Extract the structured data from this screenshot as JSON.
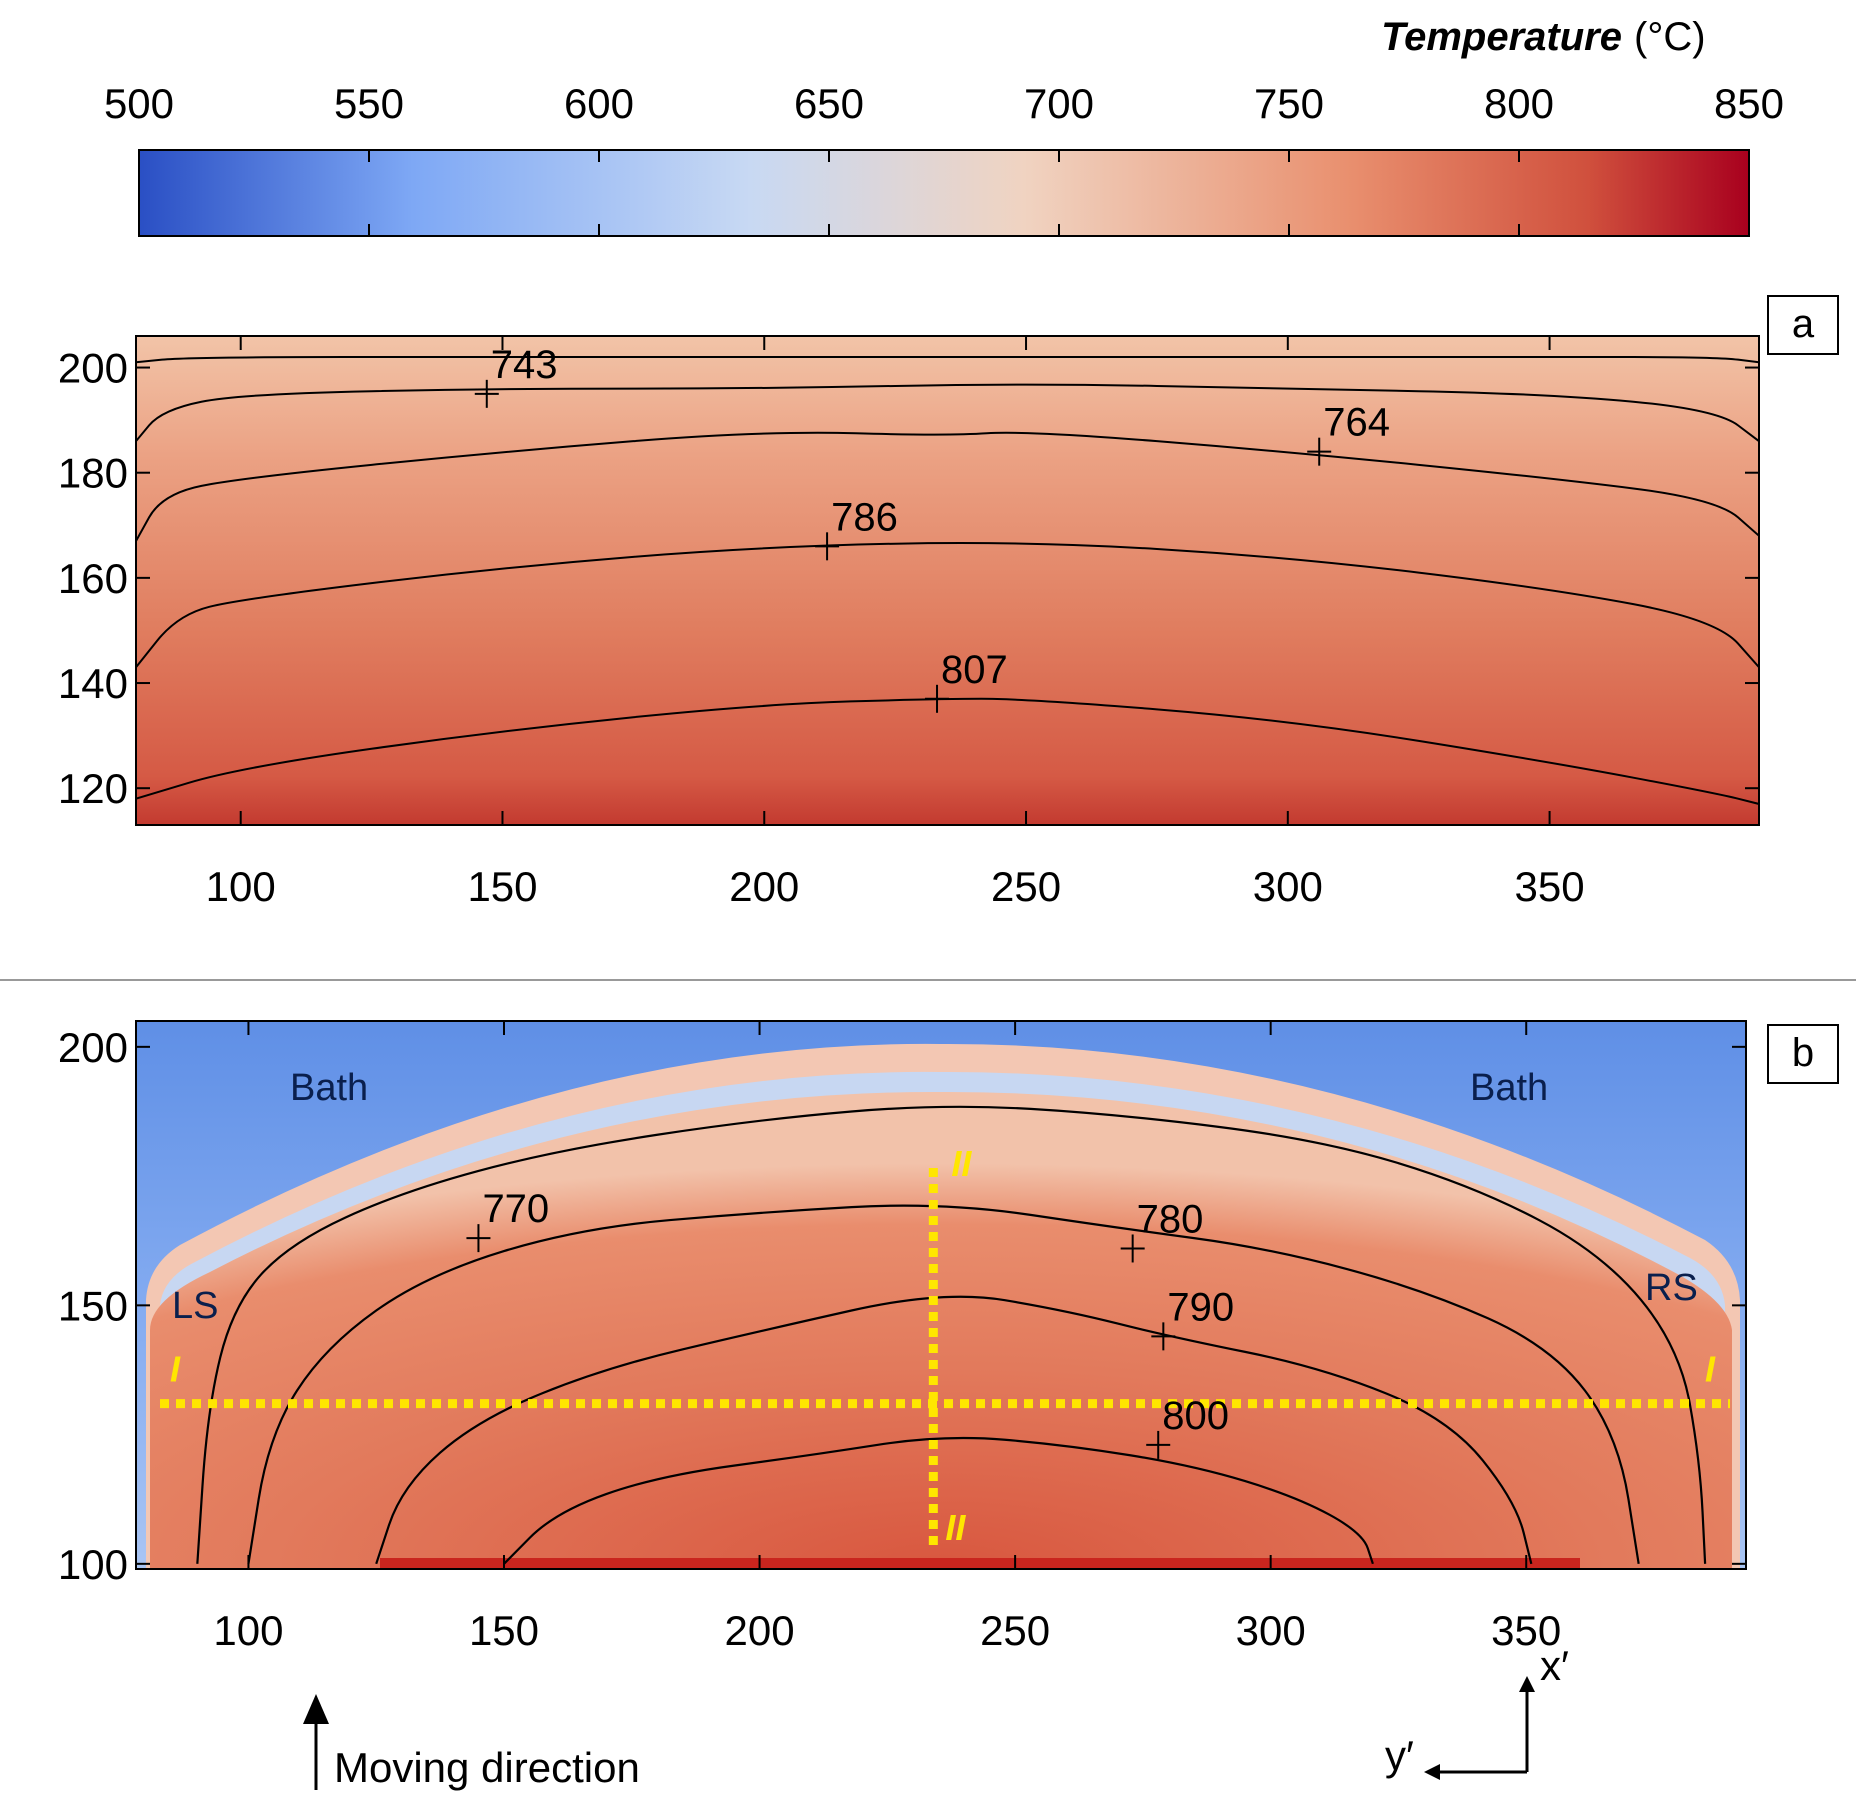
{
  "colorbar": {
    "title": "Temperature",
    "unit": "(°C)",
    "min": 500,
    "max": 850,
    "ticks": [
      "500",
      "550",
      "600",
      "650",
      "700",
      "750",
      "800",
      "850"
    ],
    "colors": [
      "#2a4fc4",
      "#7ea8f5",
      "#c8d9f3",
      "#f0d3c1",
      "#e9906f",
      "#d0503d",
      "#a8001e"
    ]
  },
  "chart_data": [
    {
      "type": "heatmap",
      "panel": "a",
      "xlim": [
        80,
        390
      ],
      "ylim": [
        113,
        206
      ],
      "x_ticks": [
        100,
        150,
        200,
        250,
        300,
        350
      ],
      "y_ticks": [
        120,
        140,
        160,
        180,
        200
      ],
      "contours": [
        {
          "label": "743",
          "label_at": [
            147,
            195
          ],
          "points": [
            [
              80,
              201
            ],
            [
              90,
              202
            ],
            [
              150,
              202
            ],
            [
              250,
              202
            ],
            [
              350,
              202
            ],
            [
              382,
              202
            ],
            [
              390,
              201
            ]
          ]
        },
        {
          "label": "764",
          "label_at": [
            306,
            184
          ],
          "points": [
            [
              80,
              186
            ],
            [
              85,
              192
            ],
            [
              100,
              195
            ],
            [
              150,
              196
            ],
            [
              200,
              196
            ],
            [
              250,
              197
            ],
            [
              300,
              196
            ],
            [
              350,
              195
            ],
            [
              382,
              192
            ],
            [
              390,
              186
            ]
          ]
        },
        {
          "label": "786",
          "label_at": [
            212,
            166
          ],
          "points": [
            [
              80,
              167
            ],
            [
              85,
              176
            ],
            [
              100,
              179
            ],
            [
              150,
              184
            ],
            [
              200,
              188
            ],
            [
              235,
              187
            ],
            [
              250,
              188
            ],
            [
              300,
              184
            ],
            [
              350,
              179
            ],
            [
              382,
              175
            ],
            [
              390,
              168
            ]
          ]
        },
        {
          "label": "807",
          "label_at": [
            233,
            137
          ],
          "points": [
            [
              80,
              143
            ],
            [
              88,
              153
            ],
            [
              100,
              156
            ],
            [
              150,
              162
            ],
            [
              200,
              166
            ],
            [
              250,
              167
            ],
            [
              300,
              164
            ],
            [
              350,
              158
            ],
            [
              382,
              152
            ],
            [
              390,
              143
            ]
          ]
        },
        {
          "label": "",
          "points": [
            [
              80,
              118
            ],
            [
              100,
              124
            ],
            [
              150,
              131
            ],
            [
              200,
              136
            ],
            [
              233,
              137
            ],
            [
              250,
              137
            ],
            [
              300,
              133
            ],
            [
              350,
              125
            ],
            [
              382,
              119
            ],
            [
              390,
              117
            ]
          ]
        }
      ]
    },
    {
      "type": "heatmap",
      "panel": "b",
      "xlim": [
        78,
        393
      ],
      "ylim": [
        99,
        205
      ],
      "x_ticks": [
        100,
        150,
        200,
        250,
        300,
        350
      ],
      "y_ticks": [
        100,
        150,
        200
      ],
      "contours": [
        {
          "label": "770",
          "label_at": [
            145,
            163
          ],
          "points": [
            [
              90,
              100
            ],
            [
              92,
              130
            ],
            [
              97,
              150
            ],
            [
              108,
              162
            ],
            [
              130,
              172
            ],
            [
              160,
              180
            ],
            [
              200,
              186
            ],
            [
              236,
              189
            ],
            [
              270,
              187
            ],
            [
              310,
              182
            ],
            [
              340,
              173
            ],
            [
              365,
              160
            ],
            [
              380,
              142
            ],
            [
              384,
              120
            ],
            [
              385,
              100
            ]
          ]
        },
        {
          "label": "780",
          "label_at": [
            273,
            161
          ],
          "points": [
            [
              100,
              100
            ],
            [
              104,
              125
            ],
            [
              115,
              142
            ],
            [
              135,
              156
            ],
            [
              165,
              165
            ],
            [
              200,
              168
            ],
            [
              236,
              170
            ],
            [
              270,
              165
            ],
            [
              300,
              161
            ],
            [
              330,
              153
            ],
            [
              355,
              142
            ],
            [
              368,
              125
            ],
            [
              372,
              100
            ]
          ]
        },
        {
          "label": "790",
          "label_at": [
            279,
            144
          ],
          "points": [
            [
              125,
              100
            ],
            [
              130,
              115
            ],
            [
              145,
              128
            ],
            [
              170,
              138
            ],
            [
              200,
              145
            ],
            [
              236,
              153
            ],
            [
              260,
              149
            ],
            [
              280,
              144
            ],
            [
              310,
              138
            ],
            [
              335,
              128
            ],
            [
              348,
              112
            ],
            [
              351,
              100
            ]
          ]
        },
        {
          "label": "800",
          "label_at": [
            278,
            123
          ],
          "points": [
            [
              150,
              100
            ],
            [
              160,
              110
            ],
            [
              180,
              117
            ],
            [
              210,
              121
            ],
            [
              236,
              125
            ],
            [
              260,
              123
            ],
            [
              285,
              119
            ],
            [
              305,
              113
            ],
            [
              318,
              106
            ],
            [
              320,
              100
            ]
          ]
        }
      ]
    }
  ],
  "panel_a": {
    "letter": "a"
  },
  "panel_b": {
    "letter": "b",
    "labels": {
      "bath_left": "Bath",
      "bath_right": "Bath",
      "ls": "LS",
      "rs": "RS"
    },
    "section_labels": {
      "horizontal_left": "I",
      "horizontal_right": "I",
      "vertical_top": "II",
      "vertical_bottom": "II"
    },
    "section_line_color": "#ffe600",
    "horizontal_section_y": 131,
    "vertical_section_x": 234
  },
  "annotations": {
    "moving_direction": "Moving direction",
    "axis_x_prime": "x′",
    "axis_y_prime": "y′"
  }
}
